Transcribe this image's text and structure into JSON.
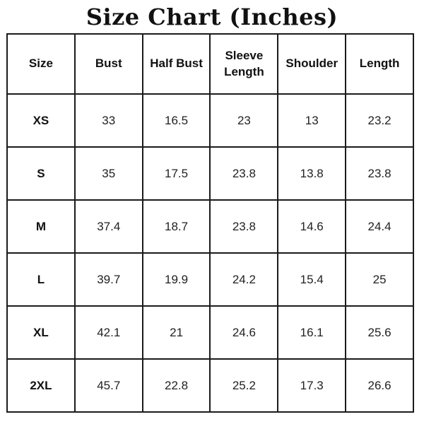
{
  "page": {
    "title": "Size Chart (Inches)"
  },
  "colors": {
    "background": "#ffffff",
    "border": "#1b1b1b",
    "text": "#1a1a1a"
  },
  "table": {
    "headers": [
      "Size",
      "Bust",
      "Half Bust",
      "Sleeve Length",
      "Shoulder",
      "Length"
    ],
    "rows": [
      {
        "cells": [
          "XS",
          "33",
          "16.5",
          "23",
          "13",
          "23.2"
        ]
      },
      {
        "cells": [
          "S",
          "35",
          "17.5",
          "23.8",
          "13.8",
          "23.8"
        ]
      },
      {
        "cells": [
          "M",
          "37.4",
          "18.7",
          "23.8",
          "14.6",
          "24.4"
        ]
      },
      {
        "cells": [
          "L",
          "39.7",
          "19.9",
          "24.2",
          "15.4",
          "25"
        ]
      },
      {
        "cells": [
          "XL",
          "42.1",
          "21",
          "24.6",
          "16.1",
          "25.6"
        ]
      },
      {
        "cells": [
          "2XL",
          "45.7",
          "22.8",
          "25.2",
          "17.3",
          "26.6"
        ]
      }
    ]
  },
  "chart_data": {
    "type": "table",
    "title": "Size Chart (Inches)",
    "units": "inches",
    "columns": [
      "Size",
      "Bust",
      "Half Bust",
      "Sleeve Length",
      "Shoulder",
      "Length"
    ],
    "rows": [
      [
        "XS",
        33,
        16.5,
        23,
        13,
        23.2
      ],
      [
        "S",
        35,
        17.5,
        23.8,
        13.8,
        23.8
      ],
      [
        "M",
        37.4,
        18.7,
        23.8,
        14.6,
        24.4
      ],
      [
        "L",
        39.7,
        19.9,
        24.2,
        15.4,
        25
      ],
      [
        "XL",
        42.1,
        21,
        24.6,
        16.1,
        25.6
      ],
      [
        "2XL",
        45.7,
        22.8,
        25.2,
        17.3,
        26.6
      ]
    ],
    "layout": {
      "grid": true,
      "header_row_bold": true,
      "size_column_bold": true
    }
  }
}
